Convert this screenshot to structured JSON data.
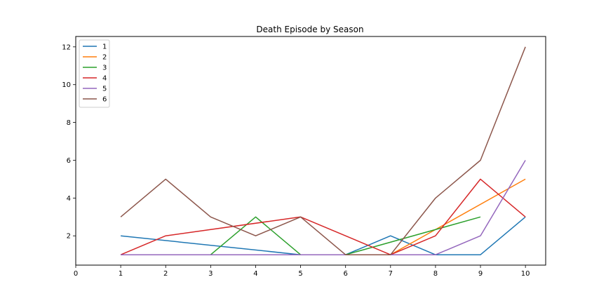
{
  "chart_data": {
    "type": "line",
    "title": "Death Episode by Season",
    "xlabel": "",
    "ylabel": "",
    "xlim": [
      0,
      10.45
    ],
    "ylim": [
      0.45,
      12.55
    ],
    "xticks": [
      0,
      1,
      2,
      3,
      4,
      5,
      6,
      7,
      8,
      9,
      10
    ],
    "yticks": [
      2,
      4,
      6,
      8,
      10,
      12
    ],
    "grid": false,
    "legend_position": "top-left",
    "series": [
      {
        "name": "1",
        "color": "#1f77b4",
        "x": [
          1,
          5,
          6,
          7,
          8,
          9,
          10
        ],
        "y": [
          2,
          1,
          1,
          2,
          1,
          1,
          3
        ]
      },
      {
        "name": "2",
        "color": "#ff7f0e",
        "x": [
          1,
          7,
          10
        ],
        "y": [
          1,
          1,
          5
        ]
      },
      {
        "name": "3",
        "color": "#2ca02c",
        "x": [
          1,
          3,
          4,
          5,
          6,
          9
        ],
        "y": [
          1,
          1,
          3,
          1,
          1,
          3
        ]
      },
      {
        "name": "4",
        "color": "#d62728",
        "x": [
          1,
          2,
          5,
          7,
          8,
          9,
          10
        ],
        "y": [
          1,
          2,
          3,
          1,
          2,
          5,
          3
        ]
      },
      {
        "name": "5",
        "color": "#9467bd",
        "x": [
          1,
          8,
          9,
          10
        ],
        "y": [
          1,
          1,
          2,
          6
        ]
      },
      {
        "name": "6",
        "color": "#8c564b",
        "x": [
          1,
          2,
          3,
          4,
          5,
          6,
          7,
          8,
          9,
          10
        ],
        "y": [
          3,
          5,
          3,
          2,
          3,
          1,
          1,
          4,
          6,
          12
        ]
      }
    ]
  }
}
